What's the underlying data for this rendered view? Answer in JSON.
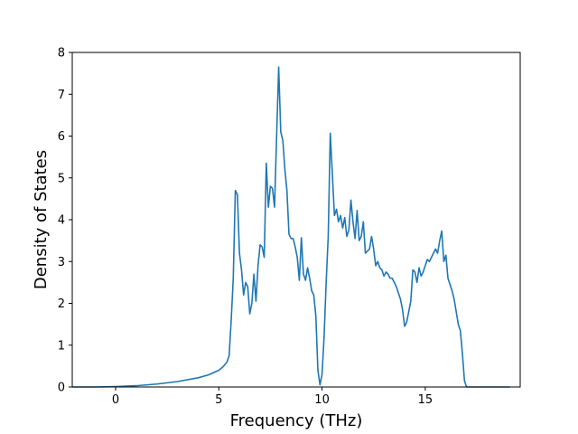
{
  "chart_data": {
    "type": "line",
    "title": "",
    "xlabel": "Frequency (THz)",
    "ylabel": "Density of States",
    "xlim": [
      -2.1,
      19.6
    ],
    "ylim": [
      0,
      8
    ],
    "xticks": [
      0,
      5,
      10,
      15
    ],
    "yticks": [
      0,
      1,
      2,
      3,
      4,
      5,
      6,
      7,
      8
    ],
    "grid": false,
    "legend": "none",
    "colors": {
      "line": "#1f77b4",
      "axes": "#000000",
      "background": "#ffffff"
    },
    "series": [
      {
        "x": [
          -2.1,
          -1.0,
          0.0,
          1.0,
          2.0,
          3.0,
          4.0,
          4.5,
          5.0,
          5.2,
          5.4,
          5.5,
          5.6,
          5.7,
          5.8,
          5.9,
          6.0,
          6.1,
          6.2,
          6.3,
          6.4,
          6.5,
          6.6,
          6.7,
          6.8,
          6.9,
          7.0,
          7.1,
          7.2,
          7.3,
          7.4,
          7.5,
          7.6,
          7.7,
          7.8,
          7.9,
          8.0,
          8.1,
          8.2,
          8.3,
          8.4,
          8.5,
          8.6,
          8.7,
          8.8,
          8.9,
          9.0,
          9.1,
          9.2,
          9.3,
          9.4,
          9.5,
          9.6,
          9.7,
          9.8,
          9.9,
          10.0,
          10.1,
          10.2,
          10.3,
          10.4,
          10.5,
          10.6,
          10.7,
          10.8,
          10.9,
          11.0,
          11.1,
          11.2,
          11.3,
          11.4,
          11.5,
          11.6,
          11.7,
          11.8,
          11.9,
          12.0,
          12.1,
          12.2,
          12.3,
          12.4,
          12.5,
          12.6,
          12.7,
          12.8,
          12.9,
          13.0,
          13.1,
          13.2,
          13.3,
          13.4,
          13.5,
          13.6,
          13.7,
          13.8,
          13.9,
          14.0,
          14.1,
          14.2,
          14.3,
          14.4,
          14.5,
          14.6,
          14.7,
          14.8,
          14.9,
          15.0,
          15.1,
          15.2,
          15.3,
          15.4,
          15.5,
          15.6,
          15.7,
          15.8,
          15.9,
          16.0,
          16.1,
          16.2,
          16.3,
          16.4,
          16.5,
          16.6,
          16.7,
          16.8,
          16.9,
          17.0,
          17.2,
          18.0,
          18.5,
          19.1
        ],
        "y": [
          0,
          0,
          0.01,
          0.03,
          0.07,
          0.13,
          0.22,
          0.29,
          0.4,
          0.48,
          0.6,
          0.75,
          1.6,
          2.6,
          4.7,
          4.6,
          3.2,
          2.8,
          2.2,
          2.5,
          2.4,
          1.75,
          2.0,
          2.7,
          2.05,
          2.9,
          3.4,
          3.35,
          3.1,
          5.35,
          4.3,
          4.8,
          4.75,
          4.3,
          6.0,
          7.65,
          6.1,
          5.9,
          5.2,
          4.7,
          3.65,
          3.55,
          3.55,
          3.35,
          3.1,
          2.55,
          3.57,
          2.7,
          2.55,
          2.85,
          2.6,
          2.3,
          2.2,
          1.7,
          0.4,
          0.05,
          0.3,
          1.2,
          2.5,
          3.6,
          6.07,
          5.1,
          4.1,
          4.25,
          3.95,
          4.1,
          3.8,
          4.05,
          3.6,
          3.75,
          4.47,
          3.95,
          3.55,
          4.22,
          3.5,
          3.6,
          3.95,
          3.2,
          3.25,
          3.3,
          3.6,
          3.3,
          2.9,
          3.0,
          2.85,
          2.8,
          2.65,
          2.75,
          2.7,
          2.6,
          2.6,
          2.5,
          2.4,
          2.25,
          2.1,
          1.85,
          1.45,
          1.55,
          1.8,
          2.05,
          2.8,
          2.75,
          2.5,
          2.85,
          2.65,
          2.75,
          2.9,
          3.05,
          3.0,
          3.1,
          3.2,
          3.3,
          3.2,
          3.5,
          3.73,
          3.0,
          3.15,
          2.6,
          2.45,
          2.3,
          2.1,
          1.8,
          1.5,
          1.35,
          0.8,
          0.15,
          0,
          0,
          0,
          0,
          0
        ]
      }
    ]
  }
}
